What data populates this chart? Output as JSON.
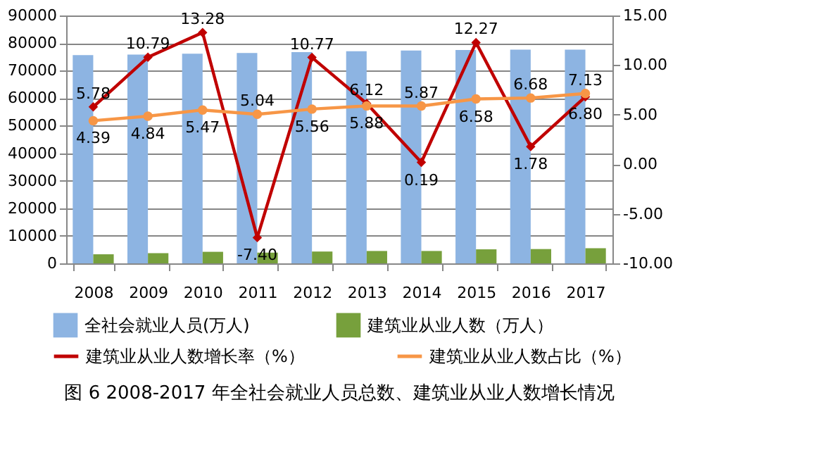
{
  "chart_data": {
    "type": "bar",
    "title": "图 6   2008-2017 年全社会就业人员总数、建筑业从业人数增长情况",
    "categories": [
      "2008",
      "2009",
      "2010",
      "2011",
      "2012",
      "2013",
      "2014",
      "2015",
      "2016",
      "2017"
    ],
    "series": [
      {
        "name": "全社会就业人员(万人)",
        "color": "#8db4e2",
        "values": [
          75600,
          75800,
          76100,
          76400,
          76700,
          77000,
          77300,
          77500,
          77600,
          77600
        ]
      },
      {
        "name": "建筑业从业人数（万人）",
        "color": "#77a03c",
        "values": [
          3300,
          3700,
          4200,
          3900,
          4300,
          4500,
          4500,
          5100,
          5200,
          5500
        ]
      },
      {
        "name": "建筑业从业人数增长率（%）",
        "type": "line",
        "axis": "y2",
        "color": "#c00000",
        "marker": "diamond",
        "values": [
          5.78,
          10.79,
          13.28,
          -7.4,
          10.77,
          6.12,
          0.19,
          12.27,
          1.78,
          6.8
        ],
        "value_labels": [
          "5.78",
          "10.79",
          "13.28",
          "-7.40",
          "10.77",
          "6.12",
          "0.19",
          "12.27",
          "1.78",
          "6.80"
        ]
      },
      {
        "name": "建筑业从业人数占比（%）",
        "type": "line",
        "axis": "y2",
        "color": "#f79646",
        "marker": "circle",
        "values": [
          4.39,
          4.84,
          5.47,
          5.04,
          5.56,
          5.88,
          5.87,
          6.58,
          6.68,
          7.13
        ],
        "value_labels": [
          "4.39",
          "4.84",
          "5.47",
          "5.04",
          "5.56",
          "5.88",
          "5.87",
          "6.58",
          "6.68",
          "7.13"
        ]
      }
    ],
    "ylim": [
      0,
      90000
    ],
    "yticks": [
      0,
      10000,
      20000,
      30000,
      40000,
      50000,
      60000,
      70000,
      80000,
      90000
    ],
    "y2lim": [
      -10,
      15
    ],
    "y2ticks": [
      {
        "value": -10,
        "label": "-10.00"
      },
      {
        "value": -5,
        "label": "-5.00"
      },
      {
        "value": 0,
        "label": "0.00"
      },
      {
        "value": 5,
        "label": "5.00"
      },
      {
        "value": 10,
        "label": "10.00"
      },
      {
        "value": 15,
        "label": "15.00"
      }
    ],
    "grid": "y",
    "legend": "bottom"
  }
}
